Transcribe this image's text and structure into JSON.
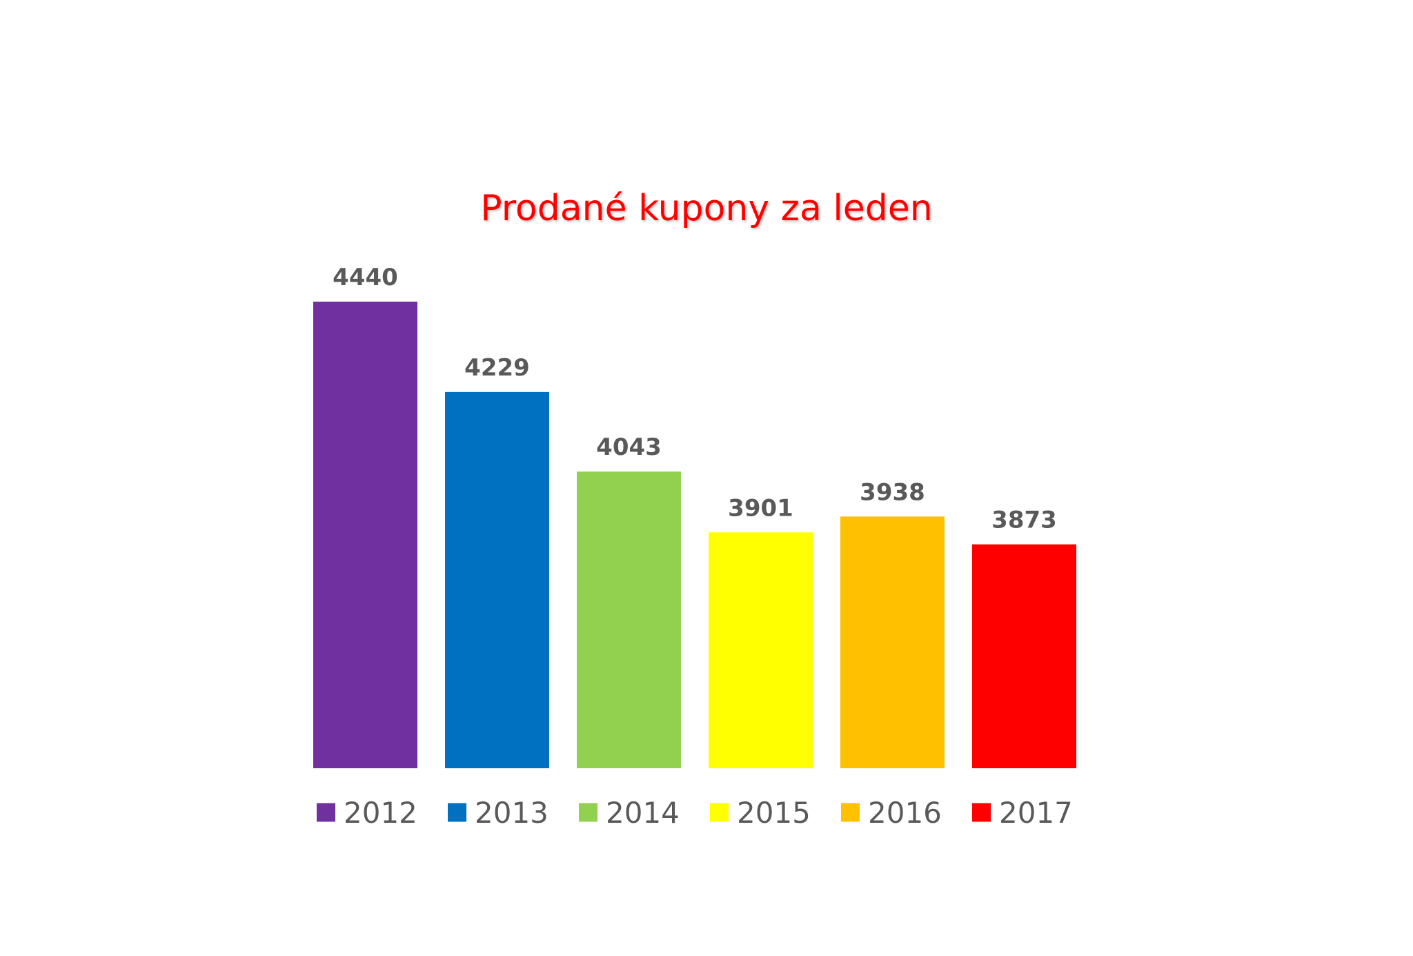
{
  "chart_data": {
    "type": "bar",
    "title": "Prodané kupony za leden",
    "categories": [
      "2012",
      "2013",
      "2014",
      "2015",
      "2016",
      "2017"
    ],
    "values": [
      4440,
      4229,
      4043,
      3901,
      3938,
      3873
    ],
    "colors": [
      "#7030a0",
      "#0070c0",
      "#92d050",
      "#ffff00",
      "#ffc000",
      "#ff0000"
    ],
    "ylim": [
      3350,
      4440
    ],
    "grid": false,
    "legend_position": "bottom",
    "data_label_color": "#595959",
    "legend_text_color": "#595959"
  }
}
